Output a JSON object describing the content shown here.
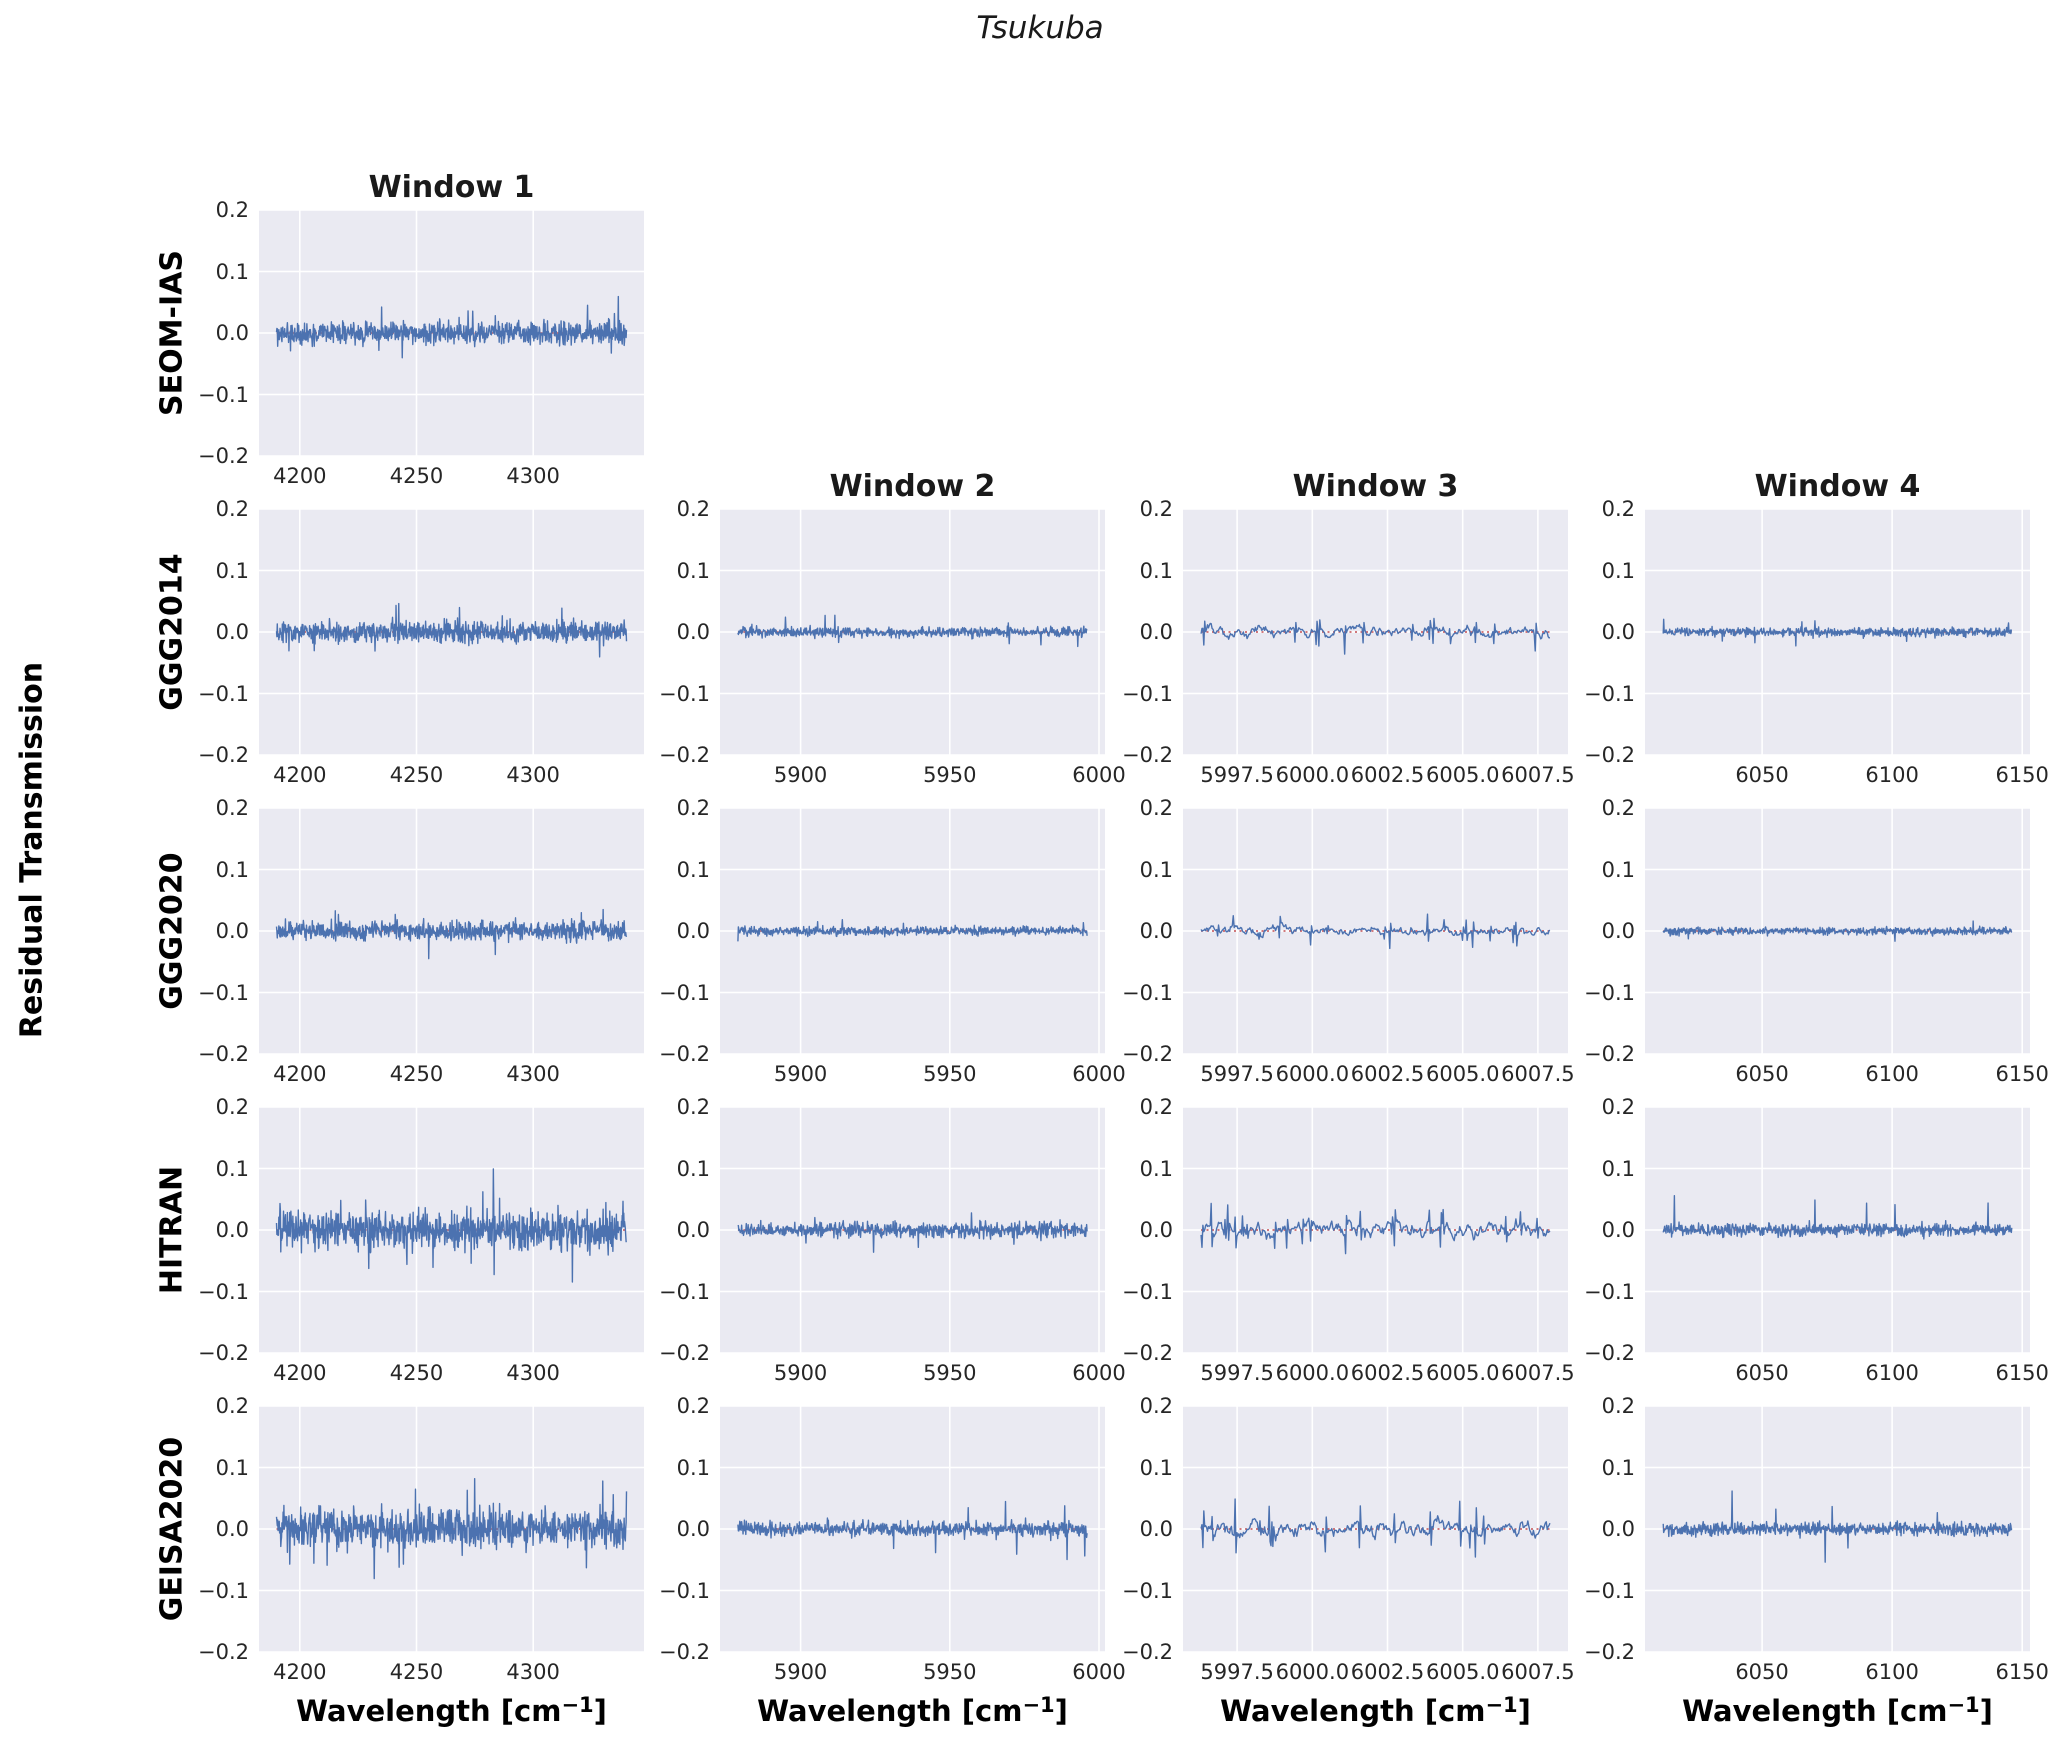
{
  "figure": {
    "title": "Tsukuba",
    "ylabel": "Residual Transmission",
    "xlabel_prefix": "Wavelength [cm",
    "xlabel_sup": "−1",
    "xlabel_suffix": "]"
  },
  "chart_data": {
    "type": "line",
    "title": "Tsukuba",
    "ylabel": "Residual Transmission",
    "xlabel": "Wavelength [cm⁻¹]",
    "grid": true,
    "legend": "none",
    "ylim": [
      -0.2,
      0.2
    ],
    "yticks": [
      0.2,
      0.1,
      0.0,
      -0.1,
      -0.2
    ],
    "ytick_labels": [
      "0.2",
      "0.1",
      "0.0",
      "−0.1",
      "−0.2"
    ],
    "colors": {
      "line": "#4c72b0",
      "zero_line": "#c44e52",
      "plot_bg": "#eaeaf2",
      "grid": "#ffffff",
      "tick_text": "#262626",
      "label_text": "#000000"
    },
    "row_labels": [
      "SEOM-IAS",
      "GGG2014",
      "GGG2020",
      "HITRAN",
      "GEISA2020"
    ],
    "windows": [
      {
        "label": "Window 1",
        "xlim": [
          4182.5,
          4347.5
        ],
        "xticks": [
          4200,
          4250,
          4300
        ],
        "xtick_labels": [
          "4200",
          "4250",
          "4300"
        ],
        "data_range": [
          4190,
          4340
        ],
        "points": 900,
        "smooth": false
      },
      {
        "label": "Window 2",
        "xlim": [
          5873,
          6002
        ],
        "xticks": [
          5900,
          5950,
          6000
        ],
        "xtick_labels": [
          "5900",
          "5950",
          "6000"
        ],
        "data_range": [
          5879,
          5996
        ],
        "points": 750,
        "smooth": false
      },
      {
        "label": "Window 3",
        "xlim": [
          5995.7,
          6008.5
        ],
        "xticks": [
          5997.5,
          6000.0,
          6002.5,
          6005.0,
          6007.5
        ],
        "xtick_labels": [
          "5997.5",
          "6000.0",
          "6002.5",
          "6005.0",
          "6007.5"
        ],
        "data_range": [
          5996.3,
          6007.9
        ],
        "points": 380,
        "smooth": true
      },
      {
        "label": "Window 4",
        "xlim": [
          6005,
          6153
        ],
        "xticks": [
          6050,
          6100,
          6150
        ],
        "xtick_labels": [
          "6050",
          "6100",
          "6150"
        ],
        "data_range": [
          6012,
          6146
        ],
        "points": 750,
        "smooth": false
      }
    ],
    "cells": [
      {
        "row": 0,
        "col": 0,
        "dataset": "SEOM-IAS",
        "window": "Window 1",
        "seed": 101,
        "noise": 0.009,
        "spike": 0.05,
        "spike_prob": 0.015,
        "spike_bias": 0.65
      },
      {
        "row": 1,
        "col": 0,
        "dataset": "GGG2014",
        "window": "Window 1",
        "seed": 201,
        "noise": 0.0085,
        "spike": 0.04,
        "spike_prob": 0.012,
        "spike_bias": 0.55
      },
      {
        "row": 1,
        "col": 1,
        "dataset": "GGG2014",
        "window": "Window 2",
        "seed": 202,
        "noise": 0.004,
        "spike": 0.034,
        "spike_prob": 0.012,
        "spike_bias": 0.5
      },
      {
        "row": 1,
        "col": 2,
        "dataset": "GGG2014",
        "window": "Window 3",
        "seed": 203,
        "noise": 0.0045,
        "spike": 0.03,
        "spike_prob": 0.03,
        "spike_bias": 0.3
      },
      {
        "row": 1,
        "col": 3,
        "dataset": "GGG2014",
        "window": "Window 4",
        "seed": 204,
        "noise": 0.0035,
        "spike": 0.024,
        "spike_prob": 0.012,
        "spike_bias": 0.55
      },
      {
        "row": 2,
        "col": 0,
        "dataset": "GGG2020",
        "window": "Window 1",
        "seed": 301,
        "noise": 0.0075,
        "spike": 0.035,
        "spike_prob": 0.01,
        "spike_bias": 0.55
      },
      {
        "row": 2,
        "col": 1,
        "dataset": "GGG2020",
        "window": "Window 2",
        "seed": 302,
        "noise": 0.0035,
        "spike": 0.028,
        "spike_prob": 0.01,
        "spike_bias": 0.5
      },
      {
        "row": 2,
        "col": 2,
        "dataset": "GGG2020",
        "window": "Window 3",
        "seed": 303,
        "noise": 0.004,
        "spike": 0.028,
        "spike_prob": 0.03,
        "spike_bias": 0.3
      },
      {
        "row": 2,
        "col": 3,
        "dataset": "GGG2020",
        "window": "Window 4",
        "seed": 304,
        "noise": 0.003,
        "spike": 0.02,
        "spike_prob": 0.01,
        "spike_bias": 0.55
      },
      {
        "row": 3,
        "col": 0,
        "dataset": "HITRAN",
        "window": "Window 1",
        "seed": 401,
        "noise": 0.015,
        "spike": 0.075,
        "spike_prob": 0.02,
        "spike_bias": 0.5
      },
      {
        "row": 3,
        "col": 1,
        "dataset": "HITRAN",
        "window": "Window 2",
        "seed": 402,
        "noise": 0.006,
        "spike": 0.05,
        "spike_prob": 0.015,
        "spike_bias": 0.5
      },
      {
        "row": 3,
        "col": 2,
        "dataset": "HITRAN",
        "window": "Window 3",
        "seed": 403,
        "noise": 0.007,
        "spike": 0.042,
        "spike_prob": 0.05,
        "spike_bias": 0.45
      },
      {
        "row": 3,
        "col": 3,
        "dataset": "HITRAN",
        "window": "Window 4",
        "seed": 404,
        "noise": 0.005,
        "spike": 0.065,
        "spike_prob": 0.013,
        "spike_bias": 0.75
      },
      {
        "row": 4,
        "col": 0,
        "dataset": "GEISA2020",
        "window": "Window 1",
        "seed": 501,
        "noise": 0.015,
        "spike": 0.07,
        "spike_prob": 0.02,
        "spike_bias": 0.45
      },
      {
        "row": 4,
        "col": 1,
        "dataset": "GEISA2020",
        "window": "Window 2",
        "seed": 502,
        "noise": 0.006,
        "spike": 0.05,
        "spike_prob": 0.015,
        "spike_bias": 0.5
      },
      {
        "row": 4,
        "col": 2,
        "dataset": "GEISA2020",
        "window": "Window 3",
        "seed": 503,
        "noise": 0.007,
        "spike": 0.055,
        "spike_prob": 0.05,
        "spike_bias": 0.55
      },
      {
        "row": 4,
        "col": 3,
        "dataset": "GEISA2020",
        "window": "Window 4",
        "seed": 504,
        "noise": 0.005,
        "spike": 0.06,
        "spike_prob": 0.013,
        "spike_bias": 0.75
      }
    ]
  }
}
